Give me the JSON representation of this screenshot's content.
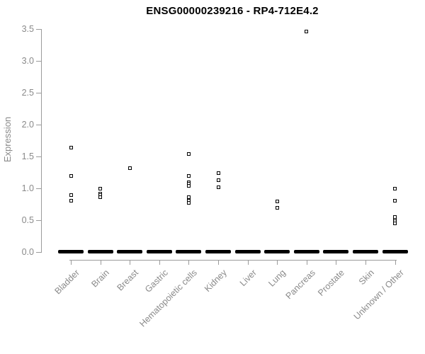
{
  "chart_data": {
    "type": "scatter",
    "subtype": "strip-plot",
    "title": "ENSG00000239216 - RP4-712E4.2",
    "xlabel": "",
    "ylabel": "Expression",
    "ylim": [
      0.0,
      3.5
    ],
    "yticks": [
      0.0,
      0.5,
      1.0,
      1.5,
      2.0,
      2.5,
      3.0,
      3.5
    ],
    "ytick_labels": [
      "0.0",
      "0.5",
      "1.0",
      "1.5",
      "2.0",
      "2.5",
      "3.0",
      "3.5"
    ],
    "grid": false,
    "legend": false,
    "marker": "open-square",
    "categories": [
      "Bladder",
      "Brain",
      "Breast",
      "Gastric",
      "Hematopoietic cells",
      "Kidney",
      "Liver",
      "Lung",
      "Pancreas",
      "Prostate",
      "Skin",
      "Unknown / Other"
    ],
    "series": [
      {
        "category": "Bladder",
        "values": [
          1.64,
          1.2,
          0.89,
          0.81
        ],
        "zero_cluster": true
      },
      {
        "category": "Brain",
        "values": [
          1.0,
          0.92,
          0.89,
          0.86
        ],
        "zero_cluster": true
      },
      {
        "category": "Breast",
        "values": [
          1.32
        ],
        "zero_cluster": true
      },
      {
        "category": "Gastric",
        "values": [],
        "zero_cluster": true
      },
      {
        "category": "Hematopoietic cells",
        "values": [
          1.54,
          1.2,
          1.1,
          1.07,
          1.04,
          0.86,
          0.81,
          0.77
        ],
        "zero_cluster": true
      },
      {
        "category": "Kidney",
        "values": [
          1.24,
          1.13,
          1.02
        ],
        "zero_cluster": true
      },
      {
        "category": "Liver",
        "values": [],
        "zero_cluster": true
      },
      {
        "category": "Lung",
        "values": [
          0.79,
          0.69
        ],
        "zero_cluster": true
      },
      {
        "category": "Pancreas",
        "values": [
          3.46
        ],
        "zero_cluster": true
      },
      {
        "category": "Prostate",
        "values": [],
        "zero_cluster": true
      },
      {
        "category": "Skin",
        "values": [],
        "zero_cluster": true
      },
      {
        "category": "Unknown / Other",
        "values": [
          0.99,
          0.81,
          0.55,
          0.51,
          0.48,
          0.45
        ],
        "zero_cluster": true
      }
    ],
    "colors": {
      "points": "#000000",
      "title": "#000000",
      "axis_lines": "#9b9b9b",
      "axis_text": "#8a8a8a",
      "background": "#ffffff"
    }
  }
}
